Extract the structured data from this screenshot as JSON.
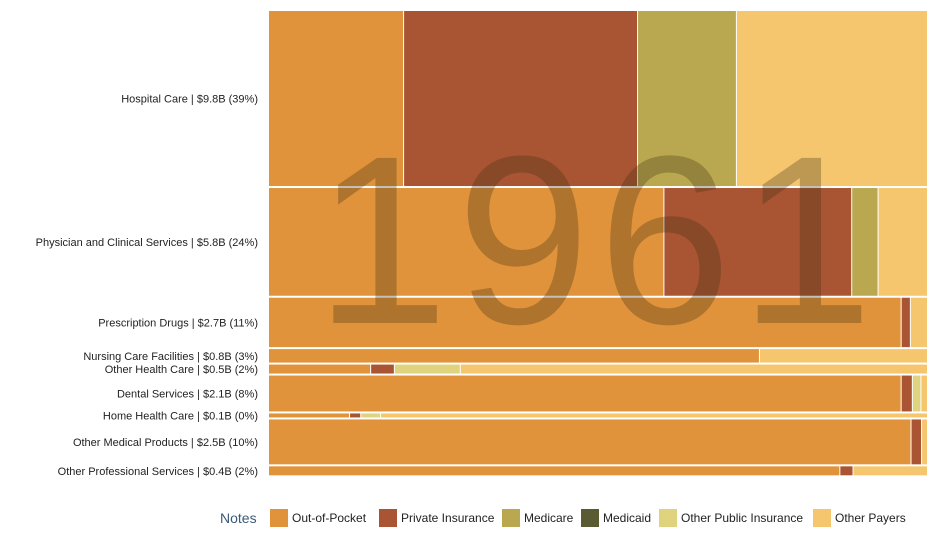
{
  "chart_data": {
    "type": "mosaic",
    "year": "1961",
    "categories": [
      {
        "name": "Hospital Care",
        "amount": "$9.8B",
        "pct": "39%",
        "share": [
          0.205,
          0.355,
          0.15,
          0.0,
          0.0,
          0.29
        ]
      },
      {
        "name": "Physician and Clinical Services",
        "amount": "$5.8B",
        "pct": "24%",
        "share": [
          0.6,
          0.285,
          0.04,
          0.0,
          0.0,
          0.075
        ]
      },
      {
        "name": "Prescription Drugs",
        "amount": "$2.7B",
        "pct": "11%",
        "share": [
          0.96,
          0.014,
          0.0,
          0.0,
          0.0,
          0.026
        ]
      },
      {
        "name": "Nursing Care Facilities",
        "amount": "$0.8B",
        "pct": "3%",
        "share": [
          0.745,
          0.0,
          0.0,
          0.0,
          0.0,
          0.255
        ]
      },
      {
        "name": "Other Health Care",
        "amount": "$0.5B",
        "pct": "2%",
        "share": [
          0.155,
          0.036,
          0.0,
          0.0,
          0.1,
          0.709
        ]
      },
      {
        "name": "Dental Services",
        "amount": "$2.1B",
        "pct": "8%",
        "share": [
          0.96,
          0.017,
          0.0,
          0.0,
          0.013,
          0.01
        ]
      },
      {
        "name": "Home Health Care",
        "amount": "$0.1B",
        "pct": "0%",
        "share": [
          0.123,
          0.017,
          0.0,
          0.0,
          0.03,
          0.83
        ]
      },
      {
        "name": "Other Medical Products",
        "amount": "$2.5B",
        "pct": "10%",
        "share": [
          0.975,
          0.016,
          0.0,
          0.0,
          0.0,
          0.009
        ]
      },
      {
        "name": "Other Professional Services",
        "amount": "$0.4B",
        "pct": "2%",
        "share": [
          0.867,
          0.02,
          0.0,
          0.0,
          0.0,
          0.113
        ]
      }
    ],
    "row_weights": [
      39,
      24,
      11,
      3,
      2,
      8,
      0.6,
      10,
      2
    ],
    "payers": [
      "Out-of-Pocket",
      "Private Insurance",
      "Medicare",
      "Medicaid",
      "Other Public Insurance",
      "Other Payers"
    ],
    "colors": [
      "#e0933a",
      "#a95533",
      "#b9a84f",
      "#5a5a33",
      "#e0d37d",
      "#f5c66e"
    ]
  },
  "legend": {
    "title": "Notes"
  }
}
